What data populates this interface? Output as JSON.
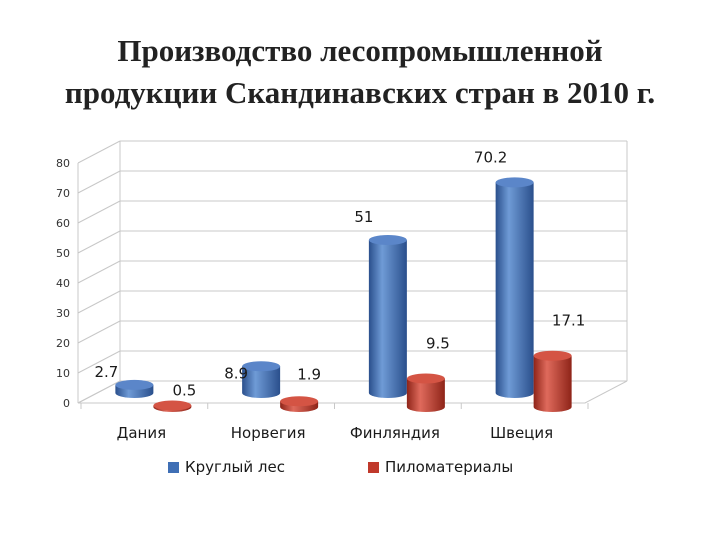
{
  "title": {
    "line1": "Производство лесопромышленной",
    "line2": "продукции Скандинавских стран в 2010 г."
  },
  "colors": {
    "series_1": "#3f6fb5",
    "series_2": "#c0392b",
    "grid": "#c8c8c8"
  },
  "chart_data": {
    "type": "bar",
    "categories": [
      "Дания",
      "Норвегия",
      "Финляндия",
      "Швеция"
    ],
    "series": [
      {
        "name": "Круглый лес",
        "values": [
          2.7,
          8.9,
          51,
          70.2
        ],
        "labels": [
          "2.7",
          "8.9",
          "51",
          "70.2"
        ]
      },
      {
        "name": "Пиломатериалы",
        "values": [
          0.5,
          1.9,
          9.5,
          17.1
        ],
        "labels": [
          "0.5",
          "1.9",
          "9.5",
          "17.1"
        ]
      }
    ],
    "yticks": [
      "0",
      "10",
      "20",
      "30",
      "40",
      "50",
      "60",
      "70",
      "80"
    ],
    "ylim": [
      0,
      80
    ],
    "grid": true,
    "legend": "bottom",
    "style": "3d-cylinder"
  }
}
